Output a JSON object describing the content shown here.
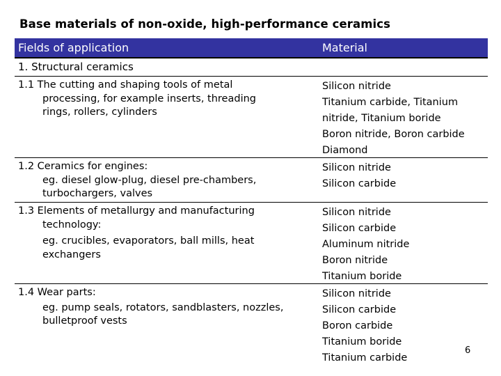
{
  "title": "Base materials of non-oxide, high-performance ceramics",
  "table": {
    "header": {
      "application": "Fields of application",
      "material": "Material"
    },
    "section": "1. Structural ceramics",
    "rows": [
      {
        "app_lines": [
          "1.1 The cutting and shaping tools of metal",
          "processing, for example inserts, threading",
          "rings, rollers, cylinders"
        ],
        "materials": [
          "Silicon nitride",
          "Titanium carbide, Titanium",
          "nitride, Titanium boride",
          "Boron nitride, Boron carbide",
          "Diamond"
        ]
      },
      {
        "app_lines": [
          "1.2 Ceramics for engines:",
          "eg. diesel glow-plug, diesel pre-chambers,",
          "turbochargers, valves"
        ],
        "materials": [
          "Silicon nitride",
          "Silicon carbide"
        ]
      },
      {
        "app_lines": [
          "1.3 Elements of metallurgy and manufacturing",
          "technology:",
          "eg. crucibles, evaporators, ball mills, heat",
          "exchangers"
        ],
        "materials": [
          "Silicon nitride",
          "Silicon carbide",
          "Aluminum nitride",
          "Boron nitride",
          "Titanium boride"
        ]
      },
      {
        "app_lines": [
          "1.4 Wear parts:",
          "eg. pump seals, rotators, sandblasters, nozzles,",
          "bulletproof vests"
        ],
        "materials": [
          "Silicon nitride",
          "Silicon carbide",
          "Boron carbide",
          "Titanium boride",
          "Titanium carbide"
        ]
      }
    ]
  },
  "page_number": "6",
  "colors": {
    "header_bg": "#3333a0",
    "header_text": "#ffffff"
  }
}
